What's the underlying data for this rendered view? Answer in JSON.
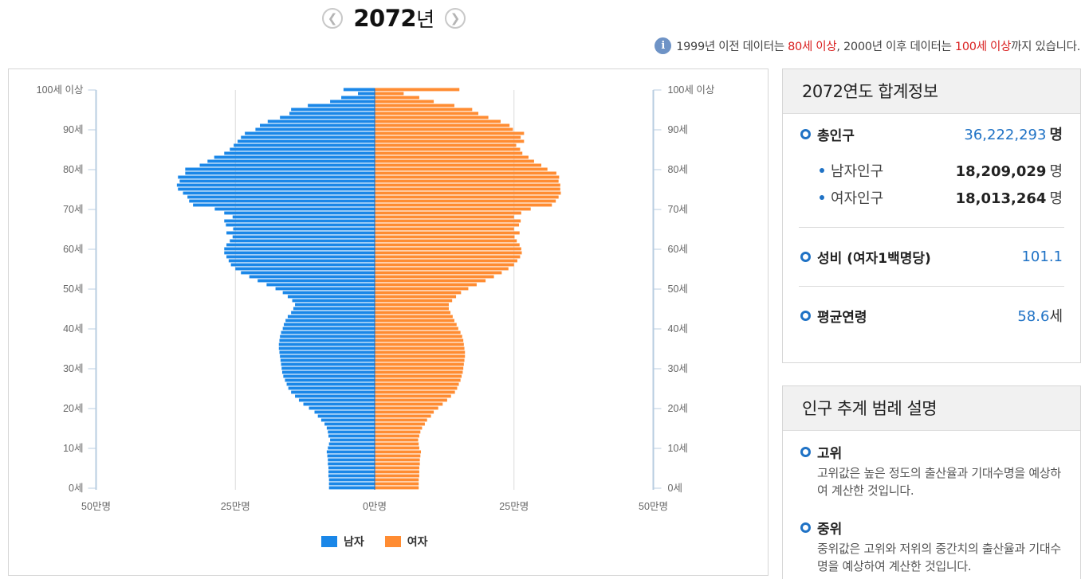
{
  "header": {
    "year": "2072",
    "year_unit": "년",
    "prev_icon": "chevron-left-icon",
    "next_icon": "chevron-right-icon"
  },
  "notice": {
    "icon": "info-icon",
    "part1": "1999년 이전 데이터는 ",
    "highlight1": "80세 이상",
    "part2": ", 2000년 이후 데이터는 ",
    "highlight2": "100세 이상",
    "part3": "까지 있습니다."
  },
  "chart_data": {
    "type": "bar",
    "orientation": "horizontal-pyramid",
    "y_ticks": [
      "0세",
      "10세",
      "20세",
      "30세",
      "40세",
      "50세",
      "60세",
      "70세",
      "80세",
      "90세",
      "100세 이상"
    ],
    "x_ticks": [
      "50만명",
      "25만명",
      "0만명",
      "25만명",
      "50만명"
    ],
    "xlim": [
      -50,
      50
    ],
    "x_unit": "만명",
    "grid": true,
    "legend_position": "bottom",
    "ages": [
      0,
      1,
      2,
      3,
      4,
      5,
      6,
      7,
      8,
      9,
      10,
      11,
      12,
      13,
      14,
      15,
      16,
      17,
      18,
      19,
      20,
      21,
      22,
      23,
      24,
      25,
      26,
      27,
      28,
      29,
      30,
      31,
      32,
      33,
      34,
      35,
      36,
      37,
      38,
      39,
      40,
      41,
      42,
      43,
      44,
      45,
      46,
      47,
      48,
      49,
      50,
      51,
      52,
      53,
      54,
      55,
      56,
      57,
      58,
      59,
      60,
      61,
      62,
      63,
      64,
      65,
      66,
      67,
      68,
      69,
      70,
      71,
      72,
      73,
      74,
      75,
      76,
      77,
      78,
      79,
      80,
      81,
      82,
      83,
      84,
      85,
      86,
      87,
      88,
      89,
      90,
      91,
      92,
      93,
      94,
      95,
      96,
      97,
      98,
      99,
      100
    ],
    "series": [
      {
        "name": "남자",
        "color": "#1a87e8",
        "values": [
          8.2,
          8.2,
          8.2,
          8.3,
          8.3,
          8.3,
          8.4,
          8.4,
          8.5,
          8.6,
          8.4,
          8.2,
          8.0,
          8.3,
          8.4,
          8.6,
          9.0,
          9.6,
          10.2,
          10.8,
          11.8,
          12.8,
          13.6,
          14.3,
          15.0,
          15.5,
          15.8,
          16.1,
          16.4,
          16.6,
          16.7,
          16.8,
          16.9,
          17.0,
          17.1,
          17.2,
          17.2,
          17.1,
          17.0,
          16.8,
          16.5,
          16.3,
          16.0,
          15.6,
          15.0,
          14.6,
          14.3,
          14.8,
          15.6,
          16.5,
          17.8,
          19.4,
          21.0,
          22.5,
          24.0,
          25.0,
          25.8,
          26.2,
          26.6,
          27.0,
          27.0,
          26.6,
          26.0,
          25.5,
          26.6,
          25.4,
          26.7,
          27.0,
          25.5,
          27.0,
          28.7,
          32.6,
          33.3,
          33.6,
          34.4,
          35.3,
          35.5,
          35.0,
          35.3,
          34.0,
          34.0,
          31.4,
          30.0,
          28.8,
          27.0,
          26.0,
          25.3,
          24.6,
          24.0,
          23.3,
          21.4,
          20.6,
          19.2,
          17.0,
          15.3,
          15.0,
          12.0,
          8.0,
          6.0,
          3.0,
          5.6
        ]
      },
      {
        "name": "여자",
        "color": "#ff8c32",
        "values": [
          7.9,
          7.9,
          7.9,
          8.0,
          8.0,
          8.0,
          8.1,
          8.1,
          8.2,
          8.3,
          8.0,
          7.9,
          7.8,
          8.0,
          8.2,
          8.5,
          9.0,
          9.4,
          10.1,
          10.6,
          11.4,
          12.2,
          13.0,
          13.7,
          14.4,
          14.8,
          15.1,
          15.4,
          15.6,
          15.8,
          15.9,
          16.0,
          16.1,
          16.2,
          16.2,
          16.1,
          16.0,
          15.9,
          15.7,
          15.4,
          15.0,
          14.7,
          14.3,
          14.0,
          13.6,
          13.3,
          13.3,
          13.9,
          14.6,
          15.5,
          16.8,
          18.3,
          19.9,
          21.4,
          22.8,
          24.0,
          25.0,
          25.6,
          26.1,
          26.4,
          26.3,
          26.0,
          25.5,
          25.1,
          26.0,
          25.0,
          25.9,
          26.2,
          25.0,
          26.3,
          28.0,
          31.8,
          32.5,
          33.0,
          33.4,
          33.3,
          33.3,
          33.0,
          33.1,
          32.6,
          31.0,
          29.9,
          28.6,
          27.6,
          26.5,
          26.1,
          25.4,
          26.8,
          26.2,
          26.8,
          24.8,
          24.2,
          22.6,
          20.4,
          18.6,
          17.5,
          14.3,
          10.6,
          8.0,
          5.2,
          15.2
        ]
      }
    ]
  },
  "legend": {
    "male": "남자",
    "female": "여자",
    "male_color": "#1a87e8",
    "female_color": "#ff8c32"
  },
  "summary": {
    "title": "2072연도 합계정보",
    "total_label": "총인구",
    "total_value": "36,222,293",
    "unit_person": "명",
    "male_label": "남자인구",
    "male_value": "18,209,029",
    "female_label": "여자인구",
    "female_value": "18,013,264",
    "ratio_label": "성비 (여자1백명당)",
    "ratio_value": "101.1",
    "age_label": "평균연령",
    "age_value": "58.6",
    "age_unit": "세"
  },
  "legend_desc": {
    "title": "인구 추계 범례 설명",
    "items": [
      {
        "title": "고위",
        "text": "고위값은 높은 정도의 출산율과 기대수명을 예상하여 계산한 것입니다."
      },
      {
        "title": "중위",
        "text": "중위값은 고위와 저위의 중간치의 출산율과 기대수명을 예상하여 계산한 것입니다."
      }
    ]
  }
}
